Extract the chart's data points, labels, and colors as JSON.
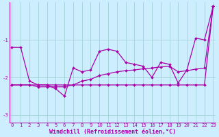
{
  "xlabel": "Windchill (Refroidissement éolien,°C)",
  "bg_color": "#cceeff",
  "line_color": "#aa00aa",
  "grid_color": "#99cccc",
  "series1": [
    0,
    -1.2,
    1,
    -1.2,
    2,
    -2.1,
    3,
    -2.2,
    4,
    -2.2,
    5,
    -2.3,
    6,
    -2.5,
    7,
    -1.75,
    8,
    -1.85,
    9,
    -1.8,
    10,
    -1.3,
    11,
    -1.25,
    12,
    -1.3,
    13,
    -1.6,
    14,
    -1.65,
    15,
    -1.7,
    16,
    -2.0,
    17,
    -1.6,
    18,
    -1.65,
    19,
    -2.15,
    20,
    -1.8,
    21,
    -0.95,
    22,
    -1.0,
    23,
    -0.1
  ],
  "series2": [
    0,
    -2.2,
    1,
    -2.2,
    2,
    -2.2,
    3,
    -2.25,
    4,
    -2.25,
    5,
    -2.25,
    6,
    -2.25,
    7,
    -2.2,
    8,
    -2.1,
    9,
    -2.05,
    10,
    -1.95,
    11,
    -1.9,
    12,
    -1.85,
    13,
    -1.82,
    14,
    -1.8,
    15,
    -1.77,
    16,
    -1.75,
    17,
    -1.72,
    18,
    -1.7,
    19,
    -1.85,
    20,
    -1.82,
    21,
    -1.78,
    22,
    -1.75,
    23,
    -0.1
  ],
  "series3": [
    0,
    -2.2,
    1,
    -2.2,
    2,
    -2.2,
    3,
    -2.2,
    4,
    -2.2,
    5,
    -2.2,
    6,
    -2.2,
    7,
    -2.2,
    8,
    -2.2,
    9,
    -2.2,
    10,
    -2.2,
    11,
    -2.2,
    12,
    -2.2,
    13,
    -2.2,
    14,
    -2.2,
    15,
    -2.2,
    16,
    -2.2,
    17,
    -2.2,
    18,
    -2.2,
    19,
    -2.2,
    20,
    -2.2,
    21,
    -2.2,
    22,
    -2.2,
    23,
    -0.1
  ],
  "ylim": [
    -3.2,
    0.0
  ],
  "xlim": [
    -0.3,
    23.3
  ],
  "yticks": [
    -3,
    -2,
    -1
  ],
  "xticks": [
    0,
    1,
    2,
    3,
    4,
    5,
    6,
    7,
    8,
    9,
    10,
    11,
    12,
    13,
    14,
    15,
    16,
    17,
    18,
    19,
    20,
    21,
    22,
    23
  ],
  "tick_fontsize": 5.2,
  "xlabel_fontsize": 6.0,
  "lw": 0.9,
  "ms": 2.0
}
